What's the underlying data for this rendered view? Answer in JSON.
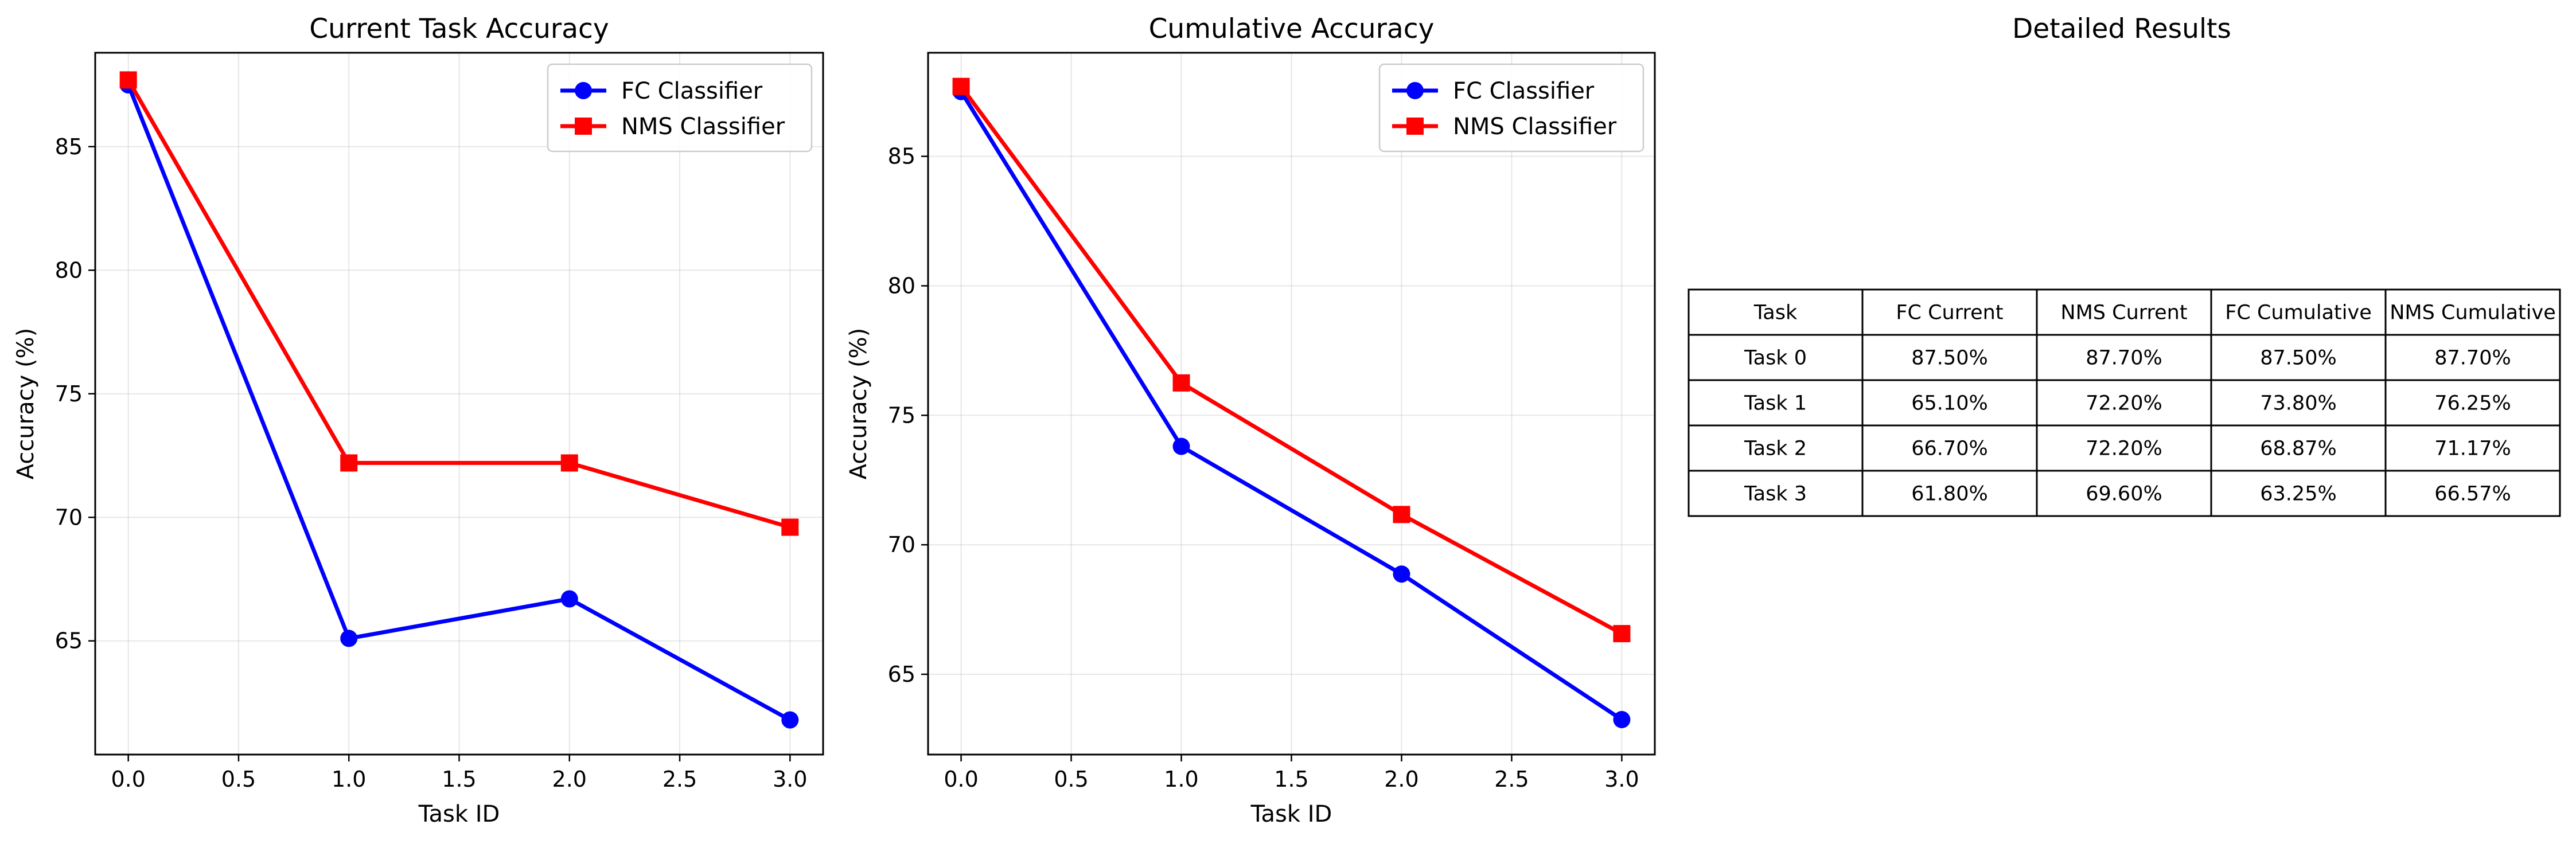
{
  "chart_data": [
    {
      "type": "line",
      "title": "Current Task Accuracy",
      "xlabel": "Task ID",
      "ylabel": "Accuracy (%)",
      "x": [
        0,
        1,
        2,
        3
      ],
      "xticks": [
        "0.0",
        "0.5",
        "1.0",
        "1.5",
        "2.0",
        "2.5",
        "3.0"
      ],
      "yticks": [
        "65",
        "70",
        "75",
        "80",
        "85"
      ],
      "xlim": [
        -0.15,
        3.15
      ],
      "ylim": [
        60.4,
        88.8
      ],
      "grid": true,
      "legend_position": "top-right",
      "series": [
        {
          "name": "FC Classifier",
          "values": [
            87.5,
            65.1,
            66.7,
            61.8
          ],
          "color": "#0000ff",
          "marker": "circle"
        },
        {
          "name": "NMS Classifier",
          "values": [
            87.7,
            72.2,
            72.2,
            69.6
          ],
          "color": "#ff0000",
          "marker": "square"
        }
      ]
    },
    {
      "type": "line",
      "title": "Cumulative Accuracy",
      "xlabel": "Task ID",
      "ylabel": "Accuracy (%)",
      "x": [
        0,
        1,
        2,
        3
      ],
      "xticks": [
        "0.0",
        "0.5",
        "1.0",
        "1.5",
        "2.0",
        "2.5",
        "3.0"
      ],
      "yticks": [
        "65",
        "70",
        "75",
        "80",
        "85"
      ],
      "xlim": [
        -0.15,
        3.15
      ],
      "ylim": [
        61.9,
        89.0
      ],
      "grid": true,
      "legend_position": "top-right",
      "series": [
        {
          "name": "FC Classifier",
          "values": [
            87.5,
            73.8,
            68.87,
            63.25
          ],
          "color": "#0000ff",
          "marker": "circle"
        },
        {
          "name": "NMS Classifier",
          "values": [
            87.7,
            76.25,
            71.17,
            66.57
          ],
          "color": "#ff0000",
          "marker": "square"
        }
      ]
    },
    {
      "type": "table",
      "title": "Detailed Results",
      "columns": [
        "Task",
        "FC Current",
        "NMS Current",
        "FC Cumulative",
        "NMS Cumulative"
      ],
      "rows": [
        [
          "Task 0",
          "87.50%",
          "87.70%",
          "87.50%",
          "87.70%"
        ],
        [
          "Task 1",
          "65.10%",
          "72.20%",
          "73.80%",
          "76.25%"
        ],
        [
          "Task 2",
          "66.70%",
          "72.20%",
          "68.87%",
          "71.17%"
        ],
        [
          "Task 3",
          "61.80%",
          "69.60%",
          "63.25%",
          "66.57%"
        ]
      ]
    }
  ]
}
